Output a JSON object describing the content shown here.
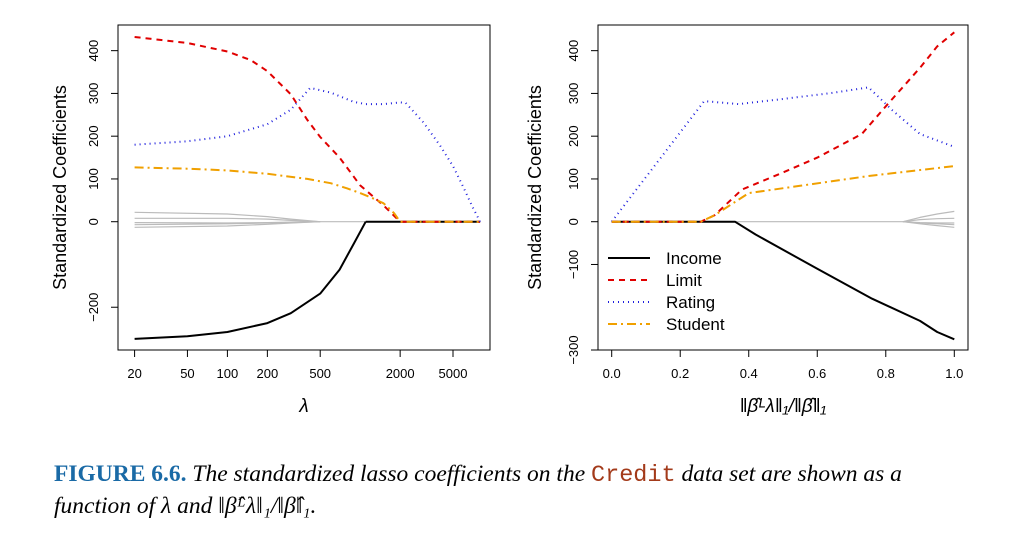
{
  "figure": {
    "caption": {
      "label": "FIGURE 6.6.",
      "text_before": " The standardized lasso coefficients on the ",
      "dataset": "Credit",
      "text_after": " data set are shown as a function of λ and ‖β̂ᴸλ‖₁/‖β̂‖₁."
    }
  },
  "chart_data": [
    {
      "type": "line",
      "xscale": "log",
      "xlabel": "λ",
      "ylabel": "Standardized Coefficients",
      "xlim": [
        15,
        9500
      ],
      "ylim": [
        -300,
        460
      ],
      "xticks": [
        20,
        50,
        100,
        200,
        500,
        2000,
        5000
      ],
      "yticks": [
        -200,
        0,
        100,
        200,
        300,
        400
      ],
      "ytick_labels": [
        "−200",
        "0",
        "100",
        "200",
        "300",
        "400"
      ],
      "legend": "none",
      "series": [
        {
          "name": "Income",
          "color": "#000000",
          "dash": "solid",
          "x": [
            20,
            50,
            100,
            200,
            300,
            500,
            700,
            900,
            1100
          ],
          "y": [
            -274,
            -268,
            -258,
            -237,
            -214,
            -168,
            -112,
            -50,
            0
          ]
        },
        {
          "name": "",
          "color": "#000000",
          "dash": "solid",
          "x": [
            1100,
            8000
          ],
          "y": [
            0,
            0
          ]
        },
        {
          "name": "Limit",
          "color": "#e00000",
          "dash": "6,5",
          "x": [
            20,
            50,
            100,
            150,
            200,
            300,
            400,
            500,
            700,
            1000,
            1500,
            2000,
            8000
          ],
          "y": [
            432,
            418,
            398,
            378,
            352,
            298,
            238,
            198,
            150,
            85,
            38,
            0,
            0
          ]
        },
        {
          "name": "Rating",
          "color": "#2020dd",
          "dash": "1,4",
          "x": [
            20,
            50,
            100,
            200,
            300,
            420,
            600,
            900,
            1100,
            1500,
            2000,
            2200,
            3000,
            4000,
            5000,
            6000,
            7000,
            8000
          ],
          "y": [
            180,
            188,
            200,
            228,
            262,
            313,
            302,
            280,
            275,
            275,
            279,
            278,
            232,
            178,
            130,
            80,
            35,
            0
          ]
        },
        {
          "name": "Student",
          "color": "#f0a000",
          "dash": "9,4,2,4",
          "x": [
            20,
            50,
            100,
            200,
            400,
            600,
            800,
            1000,
            1200,
            1500,
            1800,
            2000,
            8000
          ],
          "y": [
            127,
            124,
            120,
            112,
            100,
            90,
            78,
            67,
            57,
            43,
            20,
            0,
            0
          ]
        },
        {
          "name": "",
          "color": "#bbbbbb",
          "dash": "solid",
          "x": [
            20,
            100,
            200,
            300,
            500
          ],
          "y": [
            22,
            18,
            12,
            6,
            0
          ]
        },
        {
          "name": "",
          "color": "#bbbbbb",
          "dash": "solid",
          "x": [
            20,
            100,
            200,
            300,
            500
          ],
          "y": [
            8,
            8,
            6,
            3,
            0
          ]
        },
        {
          "name": "",
          "color": "#bbbbbb",
          "dash": "solid",
          "x": [
            20,
            100,
            200,
            300,
            500
          ],
          "y": [
            -2,
            -3,
            -2,
            -1,
            0
          ]
        },
        {
          "name": "",
          "color": "#bbbbbb",
          "dash": "solid",
          "x": [
            20,
            100,
            200,
            300,
            500
          ],
          "y": [
            -7,
            -5,
            -3,
            -2,
            0
          ]
        },
        {
          "name": "",
          "color": "#bbbbbb",
          "dash": "solid",
          "x": [
            20,
            100,
            200,
            300,
            500
          ],
          "y": [
            -13,
            -10,
            -6,
            -3,
            0
          ]
        },
        {
          "name": "",
          "color": "#bbbbbb",
          "dash": "solid",
          "x": [
            500,
            8000
          ],
          "y": [
            0,
            0
          ]
        }
      ]
    },
    {
      "type": "line",
      "xscale": "linear",
      "xlabel": "‖β̂ᴸλ‖₁/‖β̂‖₁",
      "ylabel": "Standardized Coefficients",
      "xlim": [
        -0.04,
        1.04
      ],
      "ylim": [
        -300,
        460
      ],
      "xticks": [
        0.0,
        0.2,
        0.4,
        0.6,
        0.8,
        1.0
      ],
      "xtick_labels": [
        "0.0",
        "0.2",
        "0.4",
        "0.6",
        "0.8",
        "1.0"
      ],
      "yticks": [
        -300,
        -100,
        0,
        100,
        200,
        300,
        400
      ],
      "ytick_labels": [
        "−300",
        "−100",
        "0",
        "100",
        "200",
        "300",
        "400"
      ],
      "legend": "bottom-left",
      "series": [
        {
          "name": "Income",
          "color": "#000000",
          "dash": "solid",
          "x": [
            0,
            0.36,
            0.42,
            0.6,
            0.76,
            0.9,
            0.95,
            1.0
          ],
          "y": [
            0,
            0,
            -30,
            -110,
            -180,
            -232,
            -258,
            -275
          ]
        },
        {
          "name": "Limit",
          "color": "#e00000",
          "dash": "6,5",
          "x": [
            0,
            0.26,
            0.3,
            0.38,
            0.5,
            0.6,
            0.73,
            0.8,
            0.9,
            0.95,
            1.0
          ],
          "y": [
            0,
            0,
            15,
            75,
            115,
            150,
            205,
            270,
            360,
            410,
            443
          ]
        },
        {
          "name": "Rating",
          "color": "#2020dd",
          "dash": "1,4",
          "x": [
            0,
            0.27,
            0.37,
            0.5,
            0.65,
            0.75,
            0.82,
            0.9,
            1.0
          ],
          "y": [
            0,
            282,
            275,
            287,
            302,
            314,
            260,
            205,
            175
          ]
        },
        {
          "name": "Student",
          "color": "#f0a000",
          "dash": "9,4,2,4",
          "x": [
            0,
            0.26,
            0.3,
            0.4,
            0.55,
            0.75,
            1.0
          ],
          "y": [
            0,
            0,
            15,
            67,
            84,
            107,
            130
          ]
        },
        {
          "name": "",
          "color": "#bbbbbb",
          "dash": "solid",
          "x": [
            0,
            0.85,
            0.9,
            0.95,
            1.0
          ],
          "y": [
            0,
            0,
            10,
            18,
            24
          ]
        },
        {
          "name": "",
          "color": "#bbbbbb",
          "dash": "solid",
          "x": [
            0.85,
            0.9,
            0.95,
            1.0
          ],
          "y": [
            0,
            5,
            7,
            8
          ]
        },
        {
          "name": "",
          "color": "#bbbbbb",
          "dash": "solid",
          "x": [
            0.85,
            0.9,
            0.95,
            1.0
          ],
          "y": [
            0,
            -2,
            -3,
            -3
          ]
        },
        {
          "name": "",
          "color": "#bbbbbb",
          "dash": "solid",
          "x": [
            0.85,
            0.9,
            0.95,
            1.0
          ],
          "y": [
            0,
            -3,
            -5,
            -7
          ]
        },
        {
          "name": "",
          "color": "#bbbbbb",
          "dash": "solid",
          "x": [
            0.85,
            0.9,
            0.95,
            1.0
          ],
          "y": [
            0,
            -5,
            -9,
            -13
          ]
        }
      ]
    }
  ]
}
